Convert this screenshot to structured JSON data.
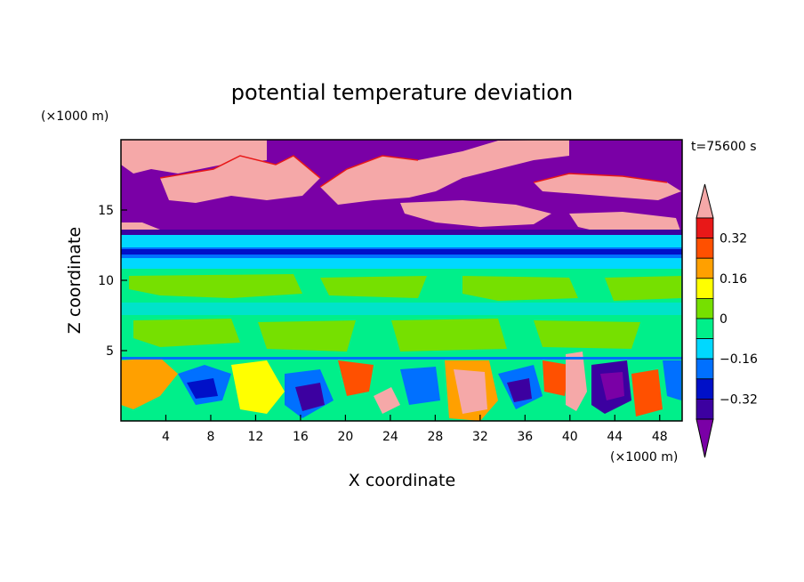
{
  "chart_data": {
    "type": "heatmap",
    "title": "potential temperature deviation",
    "xlabel": "X coordinate",
    "ylabel": "Z coordinate",
    "x_unit": "(×1000 m)",
    "y_unit": "(×1000 m)",
    "time_label": "t=75600 s",
    "xlim": [
      0,
      50
    ],
    "ylim": [
      0,
      20
    ],
    "x_ticks": [
      4,
      8,
      12,
      16,
      20,
      24,
      28,
      32,
      36,
      40,
      44,
      48
    ],
    "y_ticks": [
      5,
      10,
      15
    ],
    "colorbar": {
      "levels": [
        -0.4,
        -0.32,
        -0.24,
        -0.16,
        -0.08,
        0,
        0.08,
        0.16,
        0.24,
        0.32,
        0.4
      ],
      "labeled_levels": [
        -0.32,
        -0.16,
        0,
        0.16,
        0.32
      ],
      "level_labels": [
        "−0.32",
        "−0.16",
        "0",
        "0.16",
        "0.32"
      ],
      "colors": [
        "#7a00a6",
        "#3c00a0",
        "#0010c8",
        "#0070ff",
        "#00d8ff",
        "#00ef8a",
        "#76e000",
        "#ffff00",
        "#ffa000",
        "#ff5000",
        "#e81818",
        "#f5a8a8"
      ],
      "extend": "both"
    },
    "layers": [
      {
        "z_range": [
          0,
          4.6
        ],
        "pattern": "convective cells, mixed values -0.4 to >0.4"
      },
      {
        "z_range": [
          4.6,
          11
        ],
        "dominant_value": -0.04
      },
      {
        "z_range": [
          11,
          12.8
        ],
        "dominant_value": -0.2
      },
      {
        "z_range": [
          12.8,
          20
        ],
        "pattern": "purple (< -0.4) with pink (> 0.4) patches"
      }
    ]
  }
}
